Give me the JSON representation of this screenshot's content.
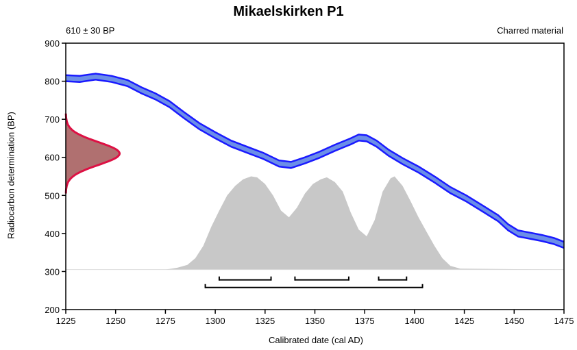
{
  "chart_data": {
    "type": "area",
    "title": "Mikaelskirken P1",
    "left_annotation": "610 ± 30 BP",
    "right_annotation": "Charred material",
    "xlabel": "Calibrated date (cal AD)",
    "ylabel": "Radiocarbon determination (BP)",
    "xlim": [
      1225,
      1475
    ],
    "ylim": [
      200,
      900
    ],
    "xticks": [
      "1225",
      "1250",
      "1275",
      "1300",
      "1325",
      "1350",
      "1375",
      "1400",
      "1425",
      "1450",
      "1475"
    ],
    "yticks": [
      "200",
      "300",
      "400",
      "500",
      "600",
      "700",
      "800",
      "900"
    ],
    "grid": false,
    "colors": {
      "calibration_curve_fill": "#6b8ee8",
      "calibration_curve_edge": "#1a1aff",
      "measurement_fill": "#b07070",
      "measurement_edge": "#dd1144",
      "posterior_fill": "#c8c8c8",
      "range_bars": "#000000"
    },
    "calibration_curve": {
      "name": "calibration curve",
      "x": [
        1225,
        1232,
        1240,
        1248,
        1256,
        1263,
        1270,
        1277,
        1284,
        1292,
        1300,
        1308,
        1317,
        1324,
        1332,
        1338,
        1345,
        1352,
        1360,
        1368,
        1372,
        1376,
        1381,
        1387,
        1394,
        1402,
        1410,
        1418,
        1426,
        1434,
        1442,
        1447,
        1452,
        1458,
        1464,
        1470,
        1475
      ],
      "y": [
        808,
        806,
        812,
        806,
        795,
        776,
        760,
        740,
        712,
        682,
        658,
        636,
        618,
        604,
        584,
        580,
        592,
        606,
        625,
        642,
        652,
        650,
        636,
        612,
        590,
        568,
        542,
        514,
        492,
        466,
        440,
        416,
        400,
        394,
        388,
        380,
        370
      ],
      "half_width": 8
    },
    "measurement": {
      "mean_bp": 610,
      "sigma_bp": 30
    },
    "posterior": {
      "name": "calibrated probability",
      "x": [
        1225,
        1275,
        1281,
        1286,
        1290,
        1294,
        1298,
        1302,
        1306,
        1310,
        1314,
        1318,
        1321,
        1325,
        1329,
        1333,
        1337,
        1341,
        1345,
        1349,
        1353,
        1356,
        1360,
        1364,
        1368,
        1372,
        1376,
        1380,
        1384,
        1388,
        1390,
        1394,
        1398,
        1402,
        1406,
        1410,
        1414,
        1418,
        1423,
        1475
      ],
      "y": [
        0,
        0,
        0.02,
        0.05,
        0.12,
        0.25,
        0.45,
        0.62,
        0.78,
        0.88,
        0.95,
        0.98,
        0.97,
        0.9,
        0.78,
        0.62,
        0.55,
        0.65,
        0.8,
        0.9,
        0.95,
        0.97,
        0.92,
        0.82,
        0.6,
        0.42,
        0.35,
        0.52,
        0.82,
        0.96,
        0.98,
        0.88,
        0.72,
        0.55,
        0.4,
        0.25,
        0.12,
        0.04,
        0.01,
        0
      ],
      "peak_bp_above_baseline": 250
    },
    "ranges_68": [
      [
        1302,
        1328
      ],
      [
        1340,
        1367
      ],
      [
        1382,
        1396
      ]
    ],
    "ranges_95": [
      [
        1295,
        1404
      ]
    ]
  }
}
